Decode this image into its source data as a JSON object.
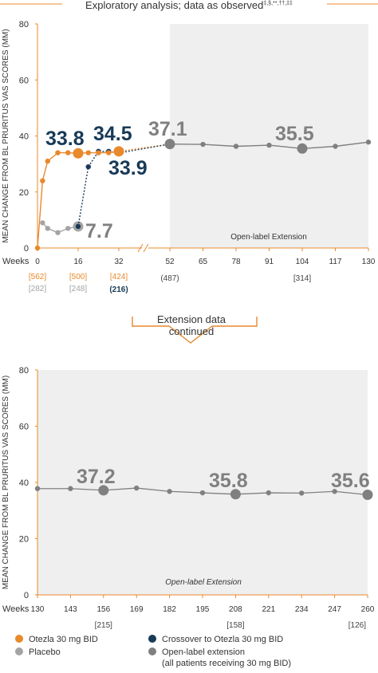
{
  "header": {
    "title": "Exploratory analysis; data as observed",
    "title_marks": "‡,§,**,††,‡‡"
  },
  "divider": {
    "line1": "Extension data",
    "line2": "continued"
  },
  "shared": {
    "ylabel": "MEAN CHANGE FROM BL PRURITUS VAS SCORES (MM)",
    "weeks_label": "Weeks"
  },
  "colors": {
    "otezla": "#e8892b",
    "placebo": "#a4a4a4",
    "crossover": "#183a57",
    "extension": "#808080",
    "shade": "#efefef"
  },
  "chart_data": [
    {
      "type": "line",
      "title": "",
      "ylabel": "MEAN CHANGE FROM BL PRURITUS VAS SCORES (MM)",
      "ylim": [
        0,
        80
      ],
      "yticks": [
        0,
        20,
        40,
        60,
        80
      ],
      "xlabel": "Weeks",
      "xticks": [
        "0",
        "16",
        "32",
        "52",
        "65",
        "78",
        "91",
        "104",
        "117",
        "130"
      ],
      "shaded_region_label": "Open-label Extension",
      "n_rows": [
        {
          "color": "otezla",
          "items": [
            {
              "x": 0,
              "text": "[562]"
            },
            {
              "x": 16,
              "text": "[500]"
            },
            {
              "x": 32,
              "text": "[424]"
            }
          ]
        },
        {
          "color": "placebo",
          "items": [
            {
              "x": 0,
              "text": "[282]"
            },
            {
              "x": 16,
              "text": "[248]"
            }
          ]
        },
        {
          "color": "crossover",
          "items": [
            {
              "x": 32,
              "text": "(216)"
            }
          ]
        },
        {
          "color": "dark",
          "items": [
            {
              "x": 52,
              "text": "(487)"
            },
            {
              "x": 104,
              "text": "[314]"
            }
          ]
        }
      ],
      "series": [
        {
          "name": "Otezla 30 mg BID",
          "color": "otezla",
          "points": [
            [
              0,
              0
            ],
            [
              2,
              24
            ],
            [
              4,
              31
            ],
            [
              8,
              34
            ],
            [
              12,
              34
            ],
            [
              16,
              33.8
            ],
            [
              20,
              34
            ],
            [
              24,
              34
            ],
            [
              28,
              34
            ],
            [
              32,
              34.5
            ]
          ]
        },
        {
          "name": "Placebo",
          "color": "placebo",
          "points": [
            [
              2,
              9
            ],
            [
              4,
              7
            ],
            [
              8,
              5.5
            ],
            [
              12,
              7
            ],
            [
              16,
              7.7
            ]
          ]
        },
        {
          "name": "Crossover to Otezla 30 mg BID",
          "color": "crossover",
          "points": [
            [
              16,
              7.7
            ],
            [
              20,
              29
            ],
            [
              24,
              34.5
            ],
            [
              28,
              34.5
            ],
            [
              32,
              33.9
            ]
          ]
        },
        {
          "name": "Open-label extension (all patients receiving 30 mg BID)",
          "color": "extension",
          "points": [
            [
              52,
              37.1
            ],
            [
              65,
              37
            ],
            [
              78,
              36.3
            ],
            [
              91,
              36.7
            ],
            [
              104,
              35.5
            ],
            [
              117,
              36.3
            ],
            [
              130,
              37.8
            ]
          ]
        }
      ],
      "annotations": [
        {
          "text": "33.8",
          "color": "crossover"
        },
        {
          "text": "34.5",
          "color": "crossover"
        },
        {
          "text": "33.9",
          "color": "crossover"
        },
        {
          "text": "7.7",
          "color": "extension"
        },
        {
          "text": "37.1",
          "color": "extension"
        },
        {
          "text": "35.5",
          "color": "extension"
        }
      ]
    },
    {
      "type": "line",
      "title": "",
      "ylabel": "MEAN CHANGE FROM BL PRURITUS VAS SCORES (MM)",
      "ylim": [
        0,
        80
      ],
      "yticks": [
        0,
        20,
        40,
        60,
        80
      ],
      "xlabel": "Weeks",
      "xticks": [
        "130",
        "143",
        "156",
        "169",
        "182",
        "195",
        "208",
        "221",
        "234",
        "247",
        "260"
      ],
      "shaded_region_label": "Open-label Extension",
      "n_labels": [
        {
          "x": 156,
          "text": "[215]"
        },
        {
          "x": 208,
          "text": "[158]"
        },
        {
          "x": 260,
          "text": "[126]"
        }
      ],
      "series": [
        {
          "name": "Open-label extension (all patients receiving 30 mg BID)",
          "color": "extension",
          "points": [
            [
              130,
              37.8
            ],
            [
              143,
              37.8
            ],
            [
              156,
              37.2
            ],
            [
              169,
              38
            ],
            [
              182,
              36.8
            ],
            [
              195,
              36.3
            ],
            [
              208,
              35.8
            ],
            [
              221,
              36.3
            ],
            [
              234,
              36.2
            ],
            [
              247,
              36.8
            ],
            [
              260,
              35.6
            ]
          ]
        }
      ],
      "annotations": [
        {
          "text": "37.2"
        },
        {
          "text": "35.8"
        },
        {
          "text": "35.6"
        }
      ]
    }
  ],
  "legend": [
    {
      "label": "Otezla 30 mg BID",
      "color": "otezla"
    },
    {
      "label": "Placebo",
      "color": "placebo"
    },
    {
      "label": "Crossover to Otezla 30 mg BID",
      "color": "crossover"
    },
    {
      "label": "Open-label extension",
      "label2": "(all patients receiving 30 mg BID)",
      "color": "extension"
    }
  ]
}
